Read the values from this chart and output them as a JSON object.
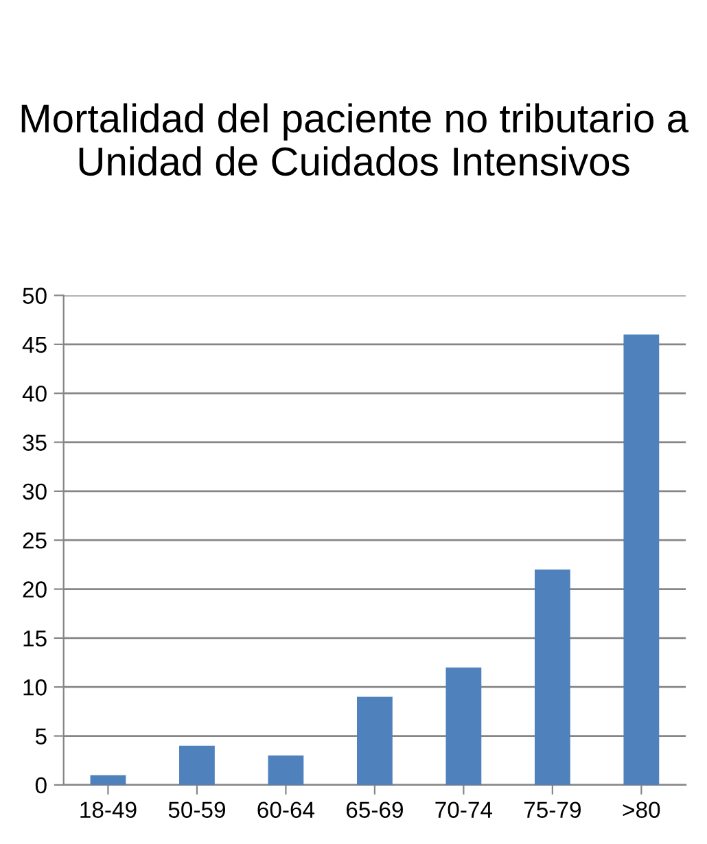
{
  "chart_data": {
    "type": "bar",
    "title": "Mortalidad del paciente no tributario a Unidad de Cuidados Intensivos",
    "categories": [
      "18-49",
      "50-59",
      "60-64",
      "65-69",
      "70-74",
      "75-79",
      ">80"
    ],
    "values": [
      1,
      4,
      3,
      9,
      12,
      22,
      46
    ],
    "color": "#4f81bd",
    "ylim": [
      0,
      50
    ],
    "yticks": [
      0,
      5,
      10,
      15,
      20,
      25,
      30,
      35,
      40,
      45,
      50
    ],
    "grid": "y",
    "legend": false
  }
}
